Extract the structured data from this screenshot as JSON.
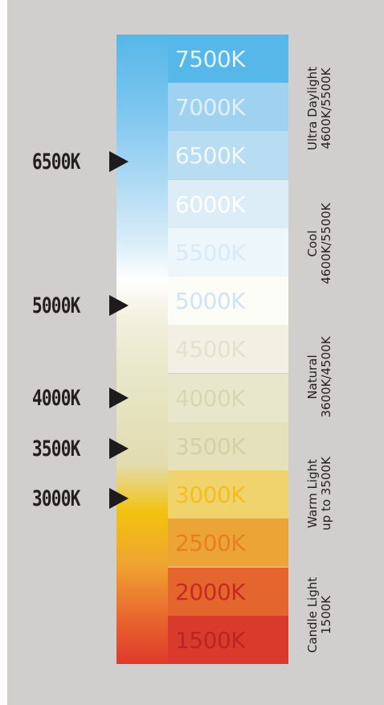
{
  "swatches": [
    {
      "label": "7500K",
      "bg": "#56b7e8",
      "fg": "#e3f2fb"
    },
    {
      "label": "7000K",
      "bg": "#9fd2f1",
      "fg": "#dff0fa"
    },
    {
      "label": "6500K",
      "bg": "#b8dcf2",
      "fg": "#f2f8fc"
    },
    {
      "label": "6000K",
      "bg": "#dcedf8",
      "fg": "#ffffff"
    },
    {
      "label": "5500K",
      "bg": "#edf6fb",
      "fg": "#d8ebf6"
    },
    {
      "label": "5000K",
      "bg": "#fdfdf7",
      "fg": "#cfe4f3"
    },
    {
      "label": "4500K",
      "bg": "#f1f0e2",
      "fg": "#e3e2cd"
    },
    {
      "label": "4000K",
      "bg": "#e8e7cb",
      "fg": "#d8d6b3"
    },
    {
      "label": "3500K",
      "bg": "#e5e1bd",
      "fg": "#d7d0a6"
    },
    {
      "label": "3000K",
      "bg": "#f0d36d",
      "fg": "#f2bf1e"
    },
    {
      "label": "2500K",
      "bg": "#eca436",
      "fg": "#e67f22"
    },
    {
      "label": "2000K",
      "bg": "#e5652e",
      "fg": "#c72a22"
    },
    {
      "label": "1500K",
      "bg": "#d93a2c",
      "fg": "#b82523"
    }
  ],
  "markers": [
    {
      "label": "6500K"
    },
    {
      "label": "5000K"
    },
    {
      "label": "4000K"
    },
    {
      "label": "3500K"
    },
    {
      "label": "3000K"
    }
  ],
  "categories": [
    {
      "line1": "Ultra Daylight",
      "line2": "4600K/5500K"
    },
    {
      "line1": "Cool",
      "line2": "4600K/5500K"
    },
    {
      "line1": "Natural",
      "line2": "3600K/4500K"
    },
    {
      "line1": "Warm Light",
      "line2": "up to 3500K"
    },
    {
      "line1": "Candle Light",
      "line2": "1500K"
    }
  ],
  "colors": {
    "panel_background": "#d1cfcd",
    "marker_text": "#231f20",
    "arrow": "#1d1b1b"
  }
}
